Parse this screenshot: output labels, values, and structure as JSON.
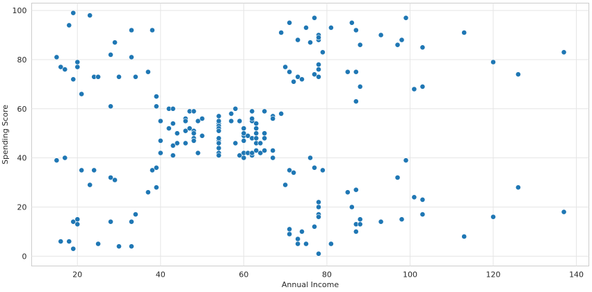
{
  "chart_data": {
    "type": "scatter",
    "title": "",
    "xlabel": "Annual Income",
    "ylabel": "Spending Score",
    "xlim": [
      9,
      143
    ],
    "ylim": [
      -4,
      103
    ],
    "xticks": [
      20,
      40,
      60,
      80,
      100,
      120,
      140
    ],
    "yticks": [
      0,
      20,
      40,
      60,
      80,
      100
    ],
    "grid": true,
    "colors": {
      "point": "#1f77b4",
      "point_edge": "#ffffff",
      "grid": "#e5e5e5",
      "frame": "#cccccc"
    },
    "points": [
      [
        15,
        39
      ],
      [
        15,
        81
      ],
      [
        16,
        6
      ],
      [
        16,
        77
      ],
      [
        17,
        40
      ],
      [
        17,
        76
      ],
      [
        18,
        6
      ],
      [
        18,
        94
      ],
      [
        19,
        3
      ],
      [
        19,
        72
      ],
      [
        19,
        14
      ],
      [
        19,
        99
      ],
      [
        20,
        15
      ],
      [
        20,
        77
      ],
      [
        20,
        13
      ],
      [
        20,
        79
      ],
      [
        21,
        35
      ],
      [
        21,
        66
      ],
      [
        23,
        29
      ],
      [
        23,
        98
      ],
      [
        24,
        35
      ],
      [
        24,
        73
      ],
      [
        25,
        5
      ],
      [
        25,
        73
      ],
      [
        28,
        14
      ],
      [
        28,
        82
      ],
      [
        28,
        32
      ],
      [
        28,
        61
      ],
      [
        29,
        31
      ],
      [
        29,
        87
      ],
      [
        30,
        4
      ],
      [
        30,
        73
      ],
      [
        33,
        4
      ],
      [
        33,
        92
      ],
      [
        33,
        14
      ],
      [
        33,
        81
      ],
      [
        34,
        17
      ],
      [
        34,
        73
      ],
      [
        37,
        26
      ],
      [
        37,
        75
      ],
      [
        38,
        35
      ],
      [
        38,
        92
      ],
      [
        39,
        36
      ],
      [
        39,
        61
      ],
      [
        39,
        28
      ],
      [
        39,
        65
      ],
      [
        40,
        55
      ],
      [
        40,
        47
      ],
      [
        40,
        42
      ],
      [
        40,
        42
      ],
      [
        42,
        52
      ],
      [
        42,
        60
      ],
      [
        43,
        54
      ],
      [
        43,
        60
      ],
      [
        43,
        45
      ],
      [
        43,
        41
      ],
      [
        44,
        50
      ],
      [
        44,
        46
      ],
      [
        46,
        51
      ],
      [
        46,
        46
      ],
      [
        46,
        56
      ],
      [
        46,
        55
      ],
      [
        47,
        52
      ],
      [
        47,
        59
      ],
      [
        48,
        51
      ],
      [
        48,
        59
      ],
      [
        48,
        50
      ],
      [
        48,
        48
      ],
      [
        48,
        59
      ],
      [
        48,
        47
      ],
      [
        49,
        55
      ],
      [
        49,
        42
      ],
      [
        50,
        49
      ],
      [
        50,
        56
      ],
      [
        54,
        47
      ],
      [
        54,
        54
      ],
      [
        54,
        53
      ],
      [
        54,
        48
      ],
      [
        54,
        52
      ],
      [
        54,
        42
      ],
      [
        54,
        51
      ],
      [
        54,
        55
      ],
      [
        54,
        41
      ],
      [
        54,
        44
      ],
      [
        54,
        57
      ],
      [
        54,
        46
      ],
      [
        57,
        58
      ],
      [
        57,
        55
      ],
      [
        58,
        60
      ],
      [
        58,
        46
      ],
      [
        59,
        55
      ],
      [
        59,
        41
      ],
      [
        60,
        49
      ],
      [
        60,
        40
      ],
      [
        60,
        42
      ],
      [
        60,
        52
      ],
      [
        60,
        47
      ],
      [
        60,
        50
      ],
      [
        61,
        42
      ],
      [
        61,
        49
      ],
      [
        62,
        41
      ],
      [
        62,
        48
      ],
      [
        62,
        59
      ],
      [
        62,
        55
      ],
      [
        62,
        56
      ],
      [
        62,
        42
      ],
      [
        63,
        50
      ],
      [
        63,
        46
      ],
      [
        63,
        43
      ],
      [
        63,
        48
      ],
      [
        63,
        52
      ],
      [
        63,
        54
      ],
      [
        64,
        42
      ],
      [
        64,
        46
      ],
      [
        65,
        48
      ],
      [
        65,
        50
      ],
      [
        65,
        43
      ],
      [
        65,
        59
      ],
      [
        67,
        43
      ],
      [
        67,
        57
      ],
      [
        67,
        56
      ],
      [
        67,
        40
      ],
      [
        69,
        58
      ],
      [
        69,
        91
      ],
      [
        70,
        29
      ],
      [
        70,
        77
      ],
      [
        71,
        35
      ],
      [
        71,
        95
      ],
      [
        71,
        11
      ],
      [
        71,
        75
      ],
      [
        71,
        9
      ],
      [
        71,
        75
      ],
      [
        72,
        34
      ],
      [
        72,
        71
      ],
      [
        73,
        5
      ],
      [
        73,
        88
      ],
      [
        73,
        7
      ],
      [
        73,
        73
      ],
      [
        74,
        10
      ],
      [
        74,
        72
      ],
      [
        75,
        5
      ],
      [
        75,
        93
      ],
      [
        76,
        40
      ],
      [
        76,
        87
      ],
      [
        77,
        12
      ],
      [
        77,
        97
      ],
      [
        77,
        36
      ],
      [
        77,
        74
      ],
      [
        78,
        22
      ],
      [
        78,
        90
      ],
      [
        78,
        17
      ],
      [
        78,
        88
      ],
      [
        78,
        20
      ],
      [
        78,
        76
      ],
      [
        78,
        16
      ],
      [
        78,
        89
      ],
      [
        78,
        1
      ],
      [
        78,
        78
      ],
      [
        78,
        1
      ],
      [
        78,
        73
      ],
      [
        79,
        35
      ],
      [
        79,
        83
      ],
      [
        81,
        5
      ],
      [
        81,
        93
      ],
      [
        85,
        26
      ],
      [
        85,
        75
      ],
      [
        86,
        20
      ],
      [
        86,
        95
      ],
      [
        87,
        27
      ],
      [
        87,
        63
      ],
      [
        87,
        13
      ],
      [
        87,
        75
      ],
      [
        87,
        10
      ],
      [
        87,
        92
      ],
      [
        88,
        13
      ],
      [
        88,
        86
      ],
      [
        88,
        15
      ],
      [
        88,
        69
      ],
      [
        93,
        14
      ],
      [
        93,
        90
      ],
      [
        97,
        32
      ],
      [
        97,
        86
      ],
      [
        98,
        15
      ],
      [
        98,
        88
      ],
      [
        99,
        39
      ],
      [
        99,
        97
      ],
      [
        101,
        24
      ],
      [
        101,
        68
      ],
      [
        103,
        17
      ],
      [
        103,
        85
      ],
      [
        103,
        23
      ],
      [
        103,
        69
      ],
      [
        113,
        8
      ],
      [
        113,
        91
      ],
      [
        120,
        16
      ],
      [
        120,
        79
      ],
      [
        126,
        28
      ],
      [
        126,
        74
      ],
      [
        137,
        18
      ],
      [
        137,
        83
      ]
    ]
  }
}
